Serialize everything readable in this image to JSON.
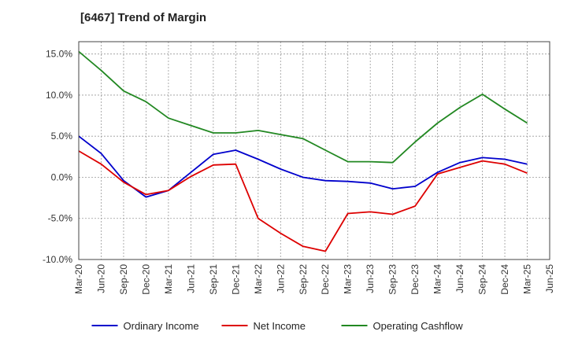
{
  "title": "[6467]  Trend of Margin",
  "chart_data": {
    "type": "line",
    "title": "[6467]  Trend of Margin",
    "xlabel": "",
    "ylabel": "",
    "x_ticks": [
      "Mar-20",
      "Jun-20",
      "Sep-20",
      "Dec-20",
      "Mar-21",
      "Jun-21",
      "Sep-21",
      "Dec-21",
      "Mar-22",
      "Jun-22",
      "Sep-22",
      "Dec-22",
      "Mar-23",
      "Jun-23",
      "Sep-23",
      "Dec-23",
      "Mar-24",
      "Jun-24",
      "Sep-24",
      "Dec-24",
      "Mar-25",
      "Jun-25"
    ],
    "y_ticks": [
      "15.0%",
      "10.0%",
      "5.0%",
      "0.0%",
      "-5.0%",
      "-10.0%"
    ],
    "ylim": [
      -10,
      16.5
    ],
    "grid": true,
    "legend_position": "bottom",
    "categories": [
      "Mar-20",
      "Jun-20",
      "Sep-20",
      "Dec-20",
      "Mar-21",
      "Jun-21",
      "Sep-21",
      "Dec-21",
      "Mar-22",
      "Jun-22",
      "Sep-22",
      "Dec-22",
      "Mar-23",
      "Jun-23",
      "Sep-23",
      "Dec-23",
      "Mar-24",
      "Jun-24",
      "Sep-24",
      "Dec-24",
      "Mar-25"
    ],
    "series": [
      {
        "name": "Ordinary Income",
        "color": "#0000cc",
        "values": [
          5.0,
          2.9,
          -0.4,
          -2.4,
          -1.6,
          0.6,
          2.8,
          3.3,
          2.2,
          1.0,
          0.0,
          -0.4,
          -0.5,
          -0.7,
          -1.4,
          -1.1,
          0.6,
          1.8,
          2.4,
          2.2,
          1.6
        ]
      },
      {
        "name": "Net Income",
        "color": "#dd0000",
        "values": [
          3.2,
          1.6,
          -0.6,
          -2.1,
          -1.6,
          0.1,
          1.5,
          1.6,
          -5.0,
          -6.8,
          -8.4,
          -9.0,
          -4.4,
          -4.2,
          -4.5,
          -3.5,
          0.4,
          1.2,
          2.0,
          1.6,
          0.5
        ]
      },
      {
        "name": "Operating Cashflow",
        "color": "#228822",
        "values": [
          15.3,
          13.0,
          10.5,
          9.2,
          7.2,
          6.3,
          5.4,
          5.4,
          5.7,
          5.2,
          4.7,
          3.3,
          1.9,
          1.9,
          1.8,
          4.3,
          6.6,
          8.5,
          10.1,
          8.3,
          6.6
        ]
      }
    ]
  }
}
